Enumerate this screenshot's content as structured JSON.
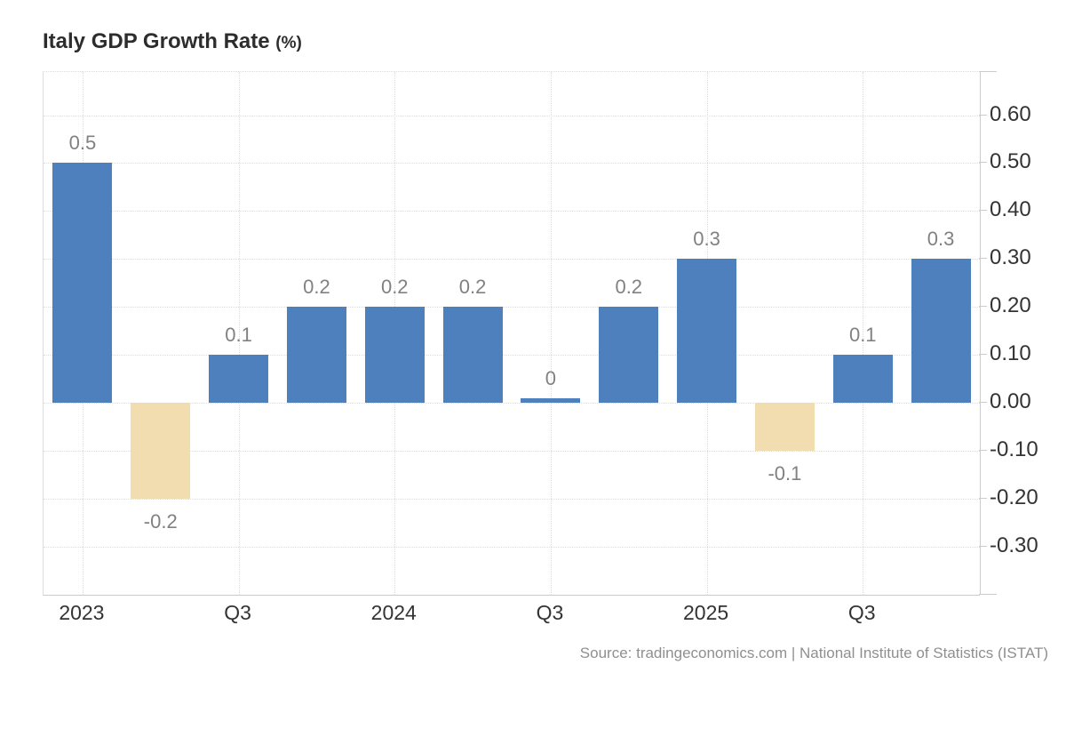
{
  "title": {
    "text": "Italy GDP Growth Rate",
    "unit": "(%)"
  },
  "source": {
    "text": "Source: tradingeconomics.com | National Institute of Statistics (ISTAT)"
  },
  "chart_data": {
    "type": "bar",
    "title": "Italy GDP Growth Rate (%)",
    "values": [
      0.5,
      -0.2,
      0.1,
      0.2,
      0.2,
      0.2,
      0,
      0.2,
      0.3,
      -0.1,
      0.1,
      0.3
    ],
    "bar_labels": [
      "0.5",
      "-0.2",
      "0.1",
      "0.2",
      "0.2",
      "0.2",
      "0",
      "0.2",
      "0.3",
      "-0.1",
      "0.1",
      "0.3"
    ],
    "x_axis": {
      "tick_labels": [
        "2023",
        "Q3",
        "2024",
        "Q3",
        "2025",
        "Q3"
      ],
      "tick_bar_indices": [
        0,
        2,
        4,
        6,
        8,
        10
      ]
    },
    "y_axis": {
      "side": "right",
      "tick_labels": [
        "0.60",
        "0.50",
        "0.40",
        "0.30",
        "0.20",
        "0.10",
        "0.00",
        "-0.10",
        "-0.20",
        "-0.30"
      ],
      "tick_values": [
        0.6,
        0.5,
        0.4,
        0.3,
        0.2,
        0.1,
        0,
        -0.1,
        -0.2,
        -0.3
      ]
    },
    "ylim": [
      -0.4,
      0.69
    ],
    "grid": true,
    "legend": "none",
    "colors": {
      "positive_bar": "#4e80bd",
      "negative_bar": "#f2ddb0"
    }
  }
}
